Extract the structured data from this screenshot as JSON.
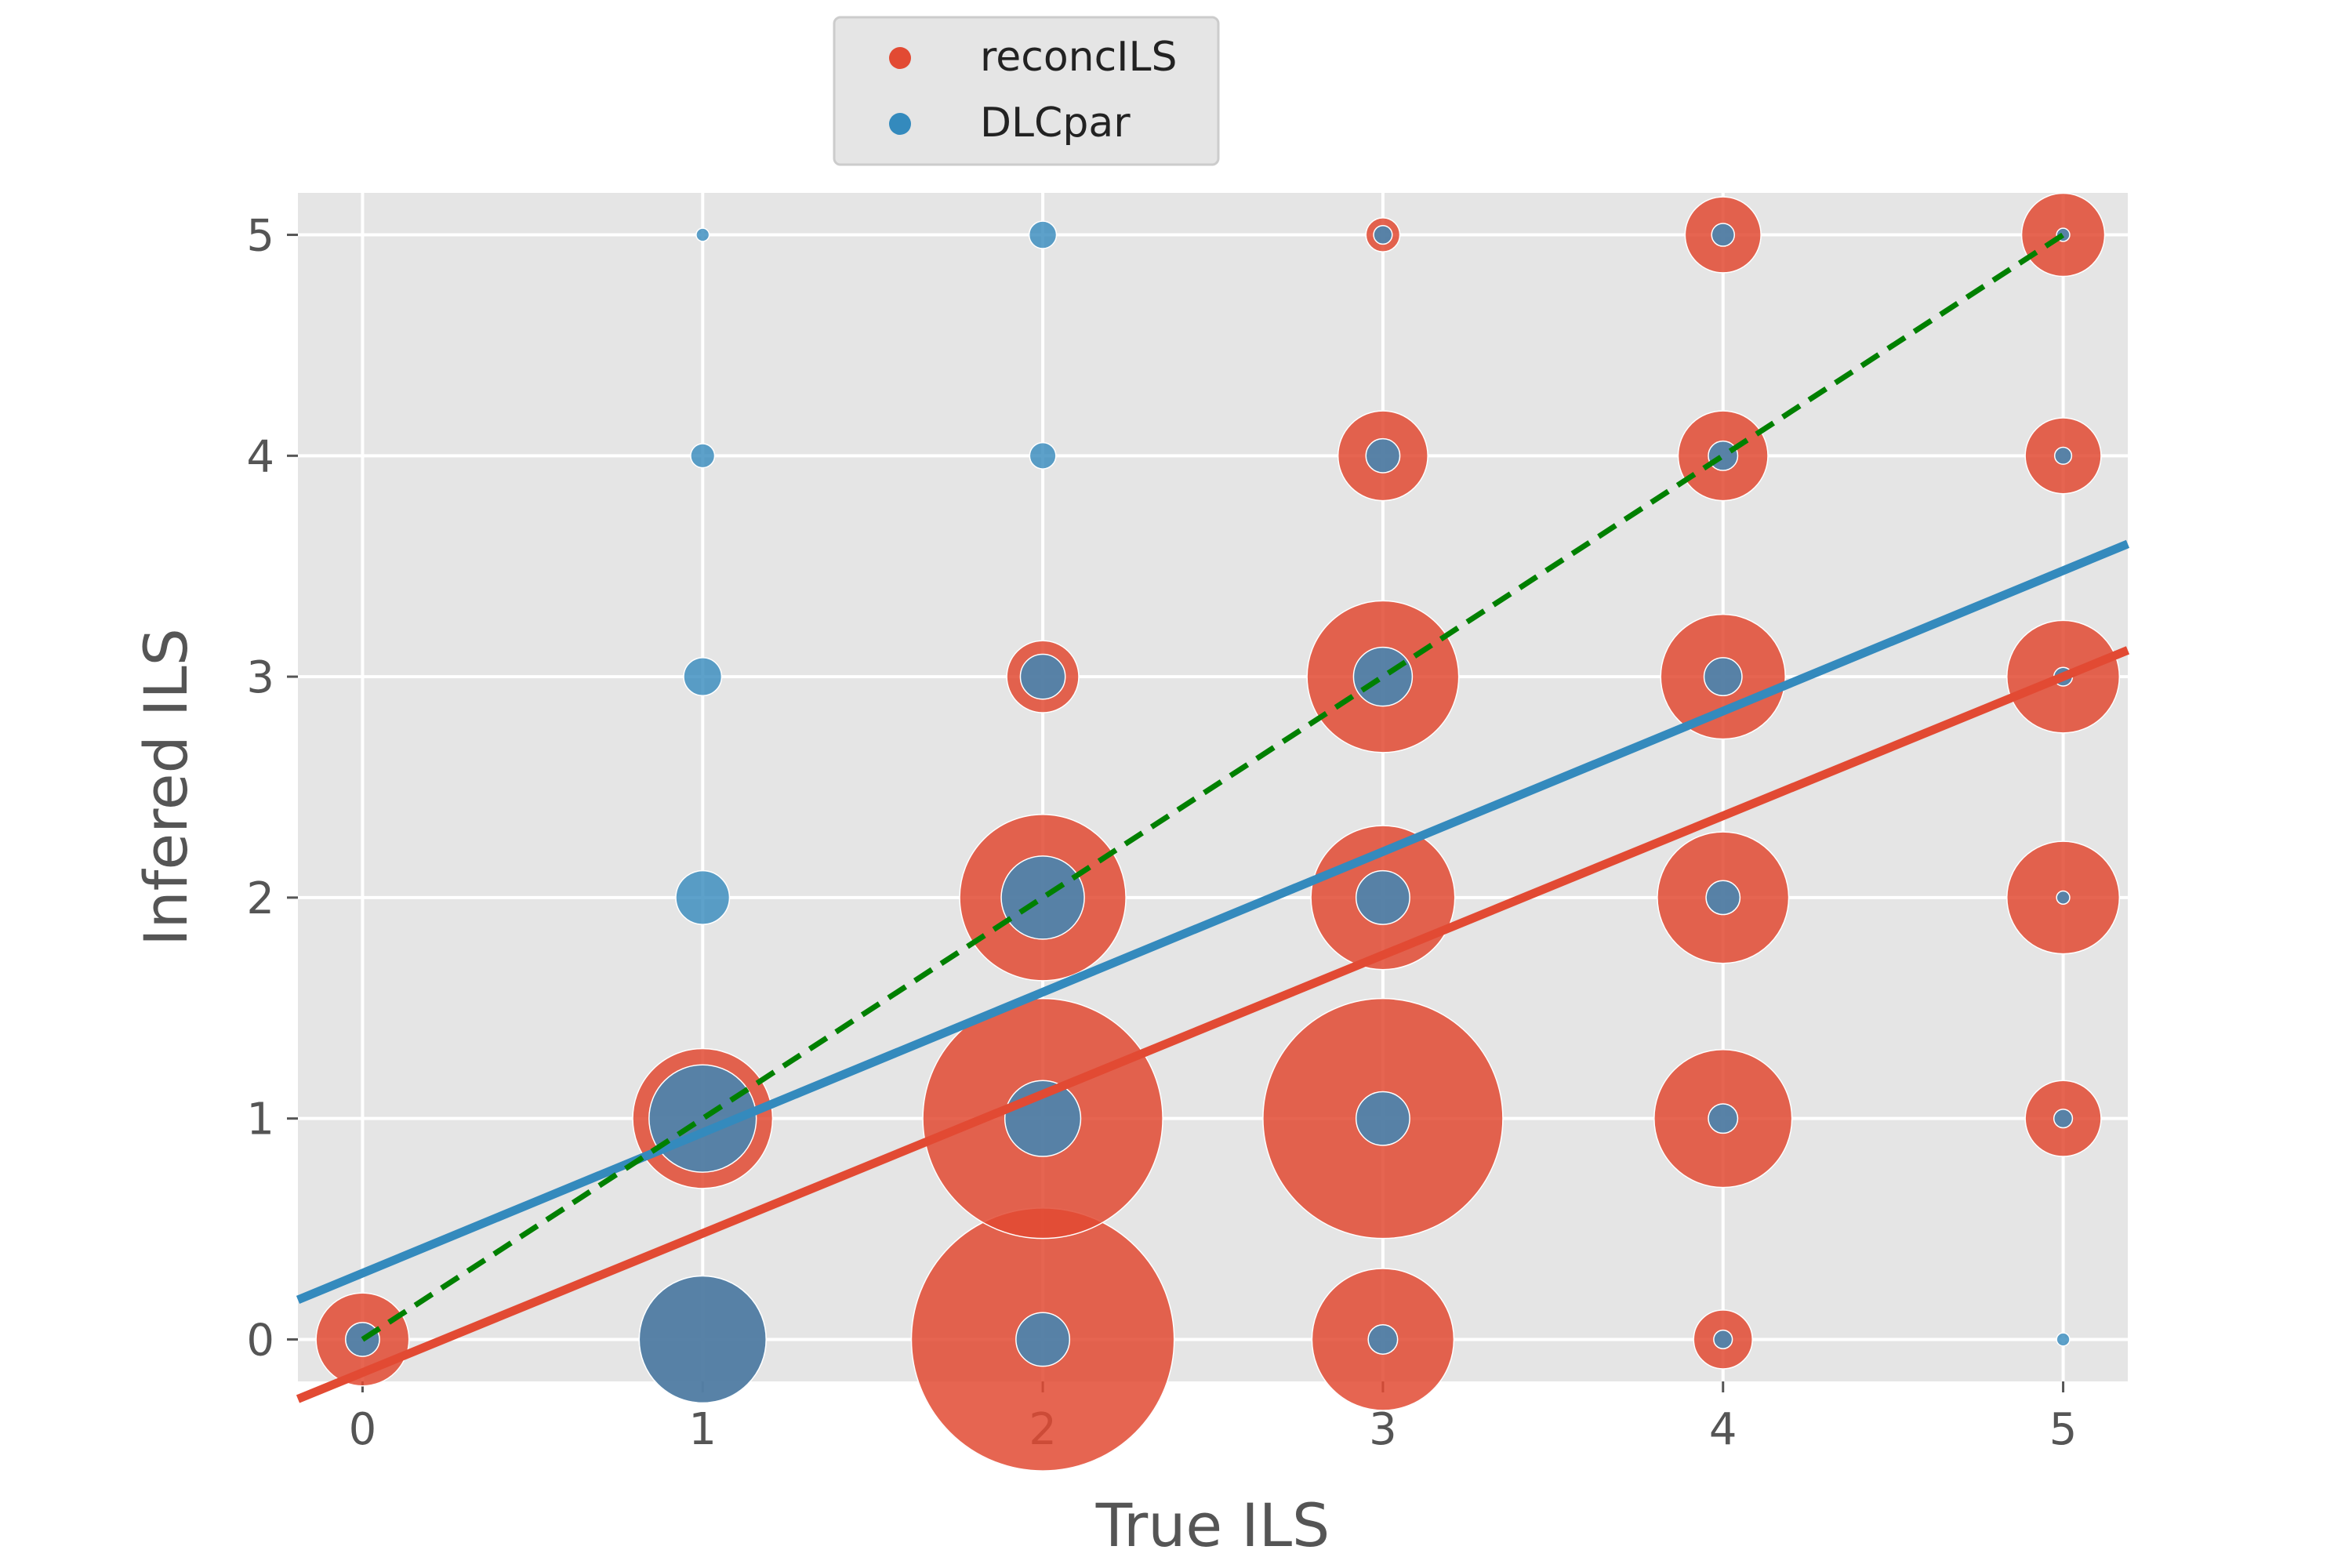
{
  "chart_data": {
    "type": "scatter",
    "title": "",
    "xlabel": "True ILS",
    "ylabel": "Infered ILS",
    "xlim": [
      -0.19,
      5.19
    ],
    "ylim": [
      -0.19,
      5.19
    ],
    "x_ticks": [
      "0",
      "1",
      "2",
      "3",
      "4",
      "5"
    ],
    "y_ticks": [
      "0",
      "1",
      "2",
      "3",
      "4",
      "5"
    ],
    "grid": true,
    "legend_position": "top-center",
    "series": [
      {
        "name": "reconcILS",
        "color": "#e24a33",
        "points": [
          {
            "x": 0,
            "y": 0,
            "size": 15
          },
          {
            "x": 1,
            "y": 0,
            "size": 28
          },
          {
            "x": 1,
            "y": 1,
            "size": 34
          },
          {
            "x": 2,
            "y": 0,
            "size": 120
          },
          {
            "x": 2,
            "y": 1,
            "size": 100
          },
          {
            "x": 2,
            "y": 2,
            "size": 48
          },
          {
            "x": 2,
            "y": 3,
            "size": 9
          },
          {
            "x": 3,
            "y": 0,
            "size": 35
          },
          {
            "x": 3,
            "y": 1,
            "size": 100
          },
          {
            "x": 3,
            "y": 2,
            "size": 36
          },
          {
            "x": 3,
            "y": 3,
            "size": 40
          },
          {
            "x": 3,
            "y": 4,
            "size": 14
          },
          {
            "x": 3,
            "y": 5,
            "size": 2
          },
          {
            "x": 4,
            "y": 0,
            "size": 6
          },
          {
            "x": 4,
            "y": 1,
            "size": 33
          },
          {
            "x": 4,
            "y": 2,
            "size": 30
          },
          {
            "x": 4,
            "y": 3,
            "size": 27
          },
          {
            "x": 4,
            "y": 4,
            "size": 14
          },
          {
            "x": 4,
            "y": 5,
            "size": 10
          },
          {
            "x": 5,
            "y": 1,
            "size": 10
          },
          {
            "x": 5,
            "y": 2,
            "size": 22
          },
          {
            "x": 5,
            "y": 3,
            "size": 22
          },
          {
            "x": 5,
            "y": 4,
            "size": 10
          },
          {
            "x": 5,
            "y": 5,
            "size": 12
          }
        ]
      },
      {
        "name": "DLCpar",
        "color": "#348abd",
        "points": [
          {
            "x": 0,
            "y": 0,
            "size": 2
          },
          {
            "x": 1,
            "y": 0,
            "size": 28
          },
          {
            "x": 1,
            "y": 1,
            "size": 20
          },
          {
            "x": 1,
            "y": 2,
            "size": 5
          },
          {
            "x": 1,
            "y": 3,
            "size": 2.5
          },
          {
            "x": 1,
            "y": 4,
            "size": 1
          },
          {
            "x": 1,
            "y": 5,
            "size": 0.3
          },
          {
            "x": 2,
            "y": 0,
            "size": 5
          },
          {
            "x": 2,
            "y": 1,
            "size": 10
          },
          {
            "x": 2,
            "y": 2,
            "size": 12
          },
          {
            "x": 2,
            "y": 3,
            "size": 3.5
          },
          {
            "x": 2,
            "y": 4,
            "size": 1.2
          },
          {
            "x": 2,
            "y": 5,
            "size": 1.3
          },
          {
            "x": 3,
            "y": 0,
            "size": 1.5
          },
          {
            "x": 3,
            "y": 1,
            "size": 5
          },
          {
            "x": 3,
            "y": 2,
            "size": 5
          },
          {
            "x": 3,
            "y": 3,
            "size": 6
          },
          {
            "x": 3,
            "y": 4,
            "size": 2
          },
          {
            "x": 3,
            "y": 5,
            "size": 0.6
          },
          {
            "x": 4,
            "y": 0,
            "size": 0.6
          },
          {
            "x": 4,
            "y": 1,
            "size": 1.5
          },
          {
            "x": 4,
            "y": 2,
            "size": 2
          },
          {
            "x": 4,
            "y": 3,
            "size": 2.5
          },
          {
            "x": 4,
            "y": 4,
            "size": 1.5
          },
          {
            "x": 4,
            "y": 5,
            "size": 0.9
          },
          {
            "x": 5,
            "y": 0,
            "size": 0.3
          },
          {
            "x": 5,
            "y": 1,
            "size": 0.6
          },
          {
            "x": 5,
            "y": 2,
            "size": 0.3
          },
          {
            "x": 5,
            "y": 3,
            "size": 0.6
          },
          {
            "x": 5,
            "y": 4,
            "size": 0.5
          },
          {
            "x": 5,
            "y": 5,
            "size": 0.3
          }
        ]
      }
    ],
    "fit_lines": [
      {
        "series": "reconcILS",
        "color": "#e24a33",
        "style": "solid",
        "intercept": -0.15,
        "slope": 0.63
      },
      {
        "series": "DLCpar",
        "color": "#348abd",
        "style": "solid",
        "intercept": 0.3,
        "slope": 0.636
      },
      {
        "series": "identity",
        "color": "#008000",
        "style": "dashed",
        "intercept": 0,
        "slope": 1,
        "x_range": [
          0,
          5
        ]
      }
    ]
  }
}
